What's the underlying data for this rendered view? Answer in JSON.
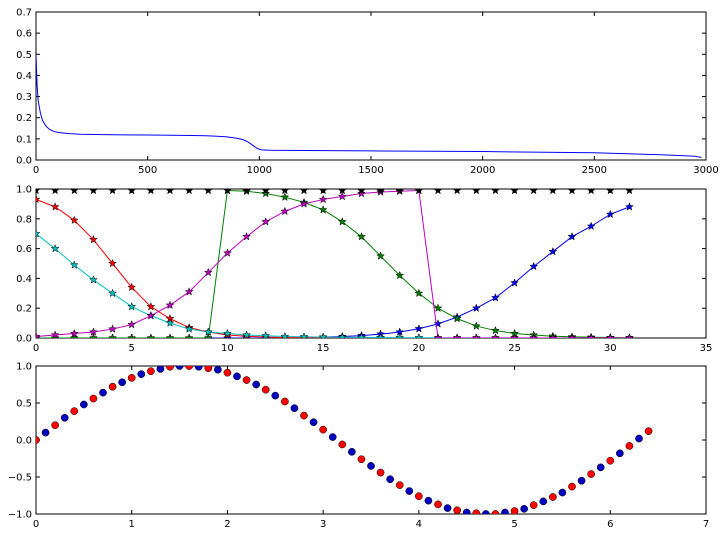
{
  "chart_data": [
    {
      "type": "line",
      "title": "",
      "xlabel": "",
      "ylabel": "",
      "xlim": [
        0,
        3000
      ],
      "ylim": [
        0,
        0.7
      ],
      "xticks": [
        0,
        500,
        1000,
        1500,
        2000,
        2500,
        3000
      ],
      "xtick_labels": [
        "0",
        "500",
        "1000",
        "1500",
        "2000",
        "2500",
        "3000"
      ],
      "yticks": [
        0.0,
        0.1,
        0.2,
        0.3,
        0.4,
        0.5,
        0.6,
        0.7
      ],
      "ytick_labels": [
        "0.0",
        "0.1",
        "0.2",
        "0.3",
        "0.4",
        "0.5",
        "0.6",
        "0.7"
      ],
      "grid": false,
      "series": [
        {
          "color": "#0000ff",
          "points": [
            [
              0,
              0.5
            ],
            [
              5,
              0.35
            ],
            [
              10,
              0.28
            ],
            [
              20,
              0.22
            ],
            [
              30,
              0.185
            ],
            [
              45,
              0.16
            ],
            [
              60,
              0.145
            ],
            [
              80,
              0.135
            ],
            [
              100,
              0.13
            ],
            [
              150,
              0.125
            ],
            [
              200,
              0.122
            ],
            [
              300,
              0.12
            ],
            [
              400,
              0.119
            ],
            [
              500,
              0.118
            ],
            [
              600,
              0.117
            ],
            [
              700,
              0.116
            ],
            [
              760,
              0.115
            ],
            [
              800,
              0.113
            ],
            [
              850,
              0.11
            ],
            [
              900,
              0.103
            ],
            [
              930,
              0.095
            ],
            [
              950,
              0.085
            ],
            [
              970,
              0.07
            ],
            [
              990,
              0.055
            ],
            [
              1010,
              0.048
            ],
            [
              1050,
              0.046
            ],
            [
              1200,
              0.045
            ],
            [
              1500,
              0.043
            ],
            [
              2000,
              0.04
            ],
            [
              2500,
              0.034
            ],
            [
              2800,
              0.025
            ],
            [
              2900,
              0.02
            ],
            [
              2950,
              0.018
            ],
            [
              2980,
              0.012
            ]
          ]
        }
      ]
    },
    {
      "type": "line",
      "title": "",
      "xlabel": "",
      "ylabel": "",
      "xlim": [
        0,
        35
      ],
      "ylim": [
        0,
        1.0
      ],
      "xticks": [
        0,
        5,
        10,
        15,
        20,
        25,
        30,
        35
      ],
      "xtick_labels": [
        "0",
        "5",
        "10",
        "15",
        "20",
        "25",
        "30",
        "35"
      ],
      "yticks": [
        0.0,
        0.2,
        0.4,
        0.6,
        0.8,
        1.0
      ],
      "ytick_labels": [
        "0.0",
        "0.2",
        "0.4",
        "0.6",
        "0.8",
        "1.0"
      ],
      "grid": false,
      "marker": "star",
      "series": [
        {
          "color": "#0000ff",
          "x": [
            0,
            1,
            2,
            3,
            4,
            5,
            6,
            7,
            8,
            9,
            10,
            11,
            12,
            13,
            14,
            15,
            16,
            17,
            18,
            19,
            20,
            21,
            22,
            23,
            24,
            25,
            26,
            27,
            28,
            29,
            30,
            31
          ],
          "y": [
            0.0,
            0.0,
            0.0,
            0.0,
            0.0,
            0.0,
            0.0,
            0.0,
            0.0,
            0.0,
            0.0,
            0.0,
            0.0,
            0.0,
            0.003,
            0.006,
            0.01,
            0.016,
            0.026,
            0.04,
            0.062,
            0.095,
            0.14,
            0.2,
            0.27,
            0.37,
            0.48,
            0.58,
            0.68,
            0.75,
            0.83,
            0.88
          ]
        },
        {
          "color": "#008000",
          "x": [
            0,
            1,
            2,
            3,
            4,
            5,
            6,
            7,
            8,
            9,
            10,
            11,
            12,
            13,
            14,
            15,
            16,
            17,
            18,
            19,
            20,
            21,
            22,
            23,
            24,
            25,
            26,
            27,
            28,
            29,
            30,
            31
          ],
          "y": [
            0.0,
            0.0,
            0.0,
            0.0,
            0.0,
            0.0,
            0.0,
            0.0,
            0.0,
            0.0,
            0.99,
            0.985,
            0.97,
            0.945,
            0.91,
            0.86,
            0.78,
            0.68,
            0.55,
            0.42,
            0.3,
            0.2,
            0.13,
            0.08,
            0.05,
            0.03,
            0.02,
            0.012,
            0.008,
            0.005,
            0.003,
            0.002
          ]
        },
        {
          "color": "#ff0000",
          "x": [
            0,
            1,
            2,
            3,
            4,
            5,
            6,
            7,
            8,
            9,
            10,
            11,
            12,
            13,
            14,
            15,
            16,
            17,
            18,
            19,
            20,
            21,
            22,
            23,
            24,
            25,
            26,
            27,
            28,
            29,
            30,
            31
          ],
          "y": [
            0.93,
            0.88,
            0.79,
            0.66,
            0.5,
            0.34,
            0.21,
            0.13,
            0.07,
            0.04,
            0.02,
            0.012,
            0.006,
            0.003,
            0.002,
            0.001,
            0.0,
            0.0,
            0.0,
            0.0,
            0.0,
            0.0,
            0.0,
            0.0,
            0.0,
            0.0,
            0.0,
            0.0,
            0.0,
            0.0,
            0.0,
            0.0
          ]
        },
        {
          "color": "#00bfbf",
          "x": [
            0,
            1,
            2,
            3,
            4,
            5,
            6,
            7,
            8,
            9,
            10,
            11,
            12,
            13,
            14,
            15,
            16,
            17,
            18,
            19,
            20,
            21,
            22,
            23,
            24,
            25,
            26,
            27,
            28,
            29,
            30,
            31
          ],
          "y": [
            0.7,
            0.6,
            0.49,
            0.39,
            0.3,
            0.21,
            0.15,
            0.1,
            0.06,
            0.04,
            0.03,
            0.02,
            0.015,
            0.01,
            0.008,
            0.006,
            0.005,
            0.004,
            0.003,
            0.002,
            0.002,
            0.001,
            0.001,
            0.001,
            0.001,
            0.001,
            0.0,
            0.0,
            0.0,
            0.0,
            0.0,
            0.0
          ]
        },
        {
          "color": "#bf00bf",
          "x": [
            0,
            1,
            2,
            3,
            4,
            5,
            6,
            7,
            8,
            9,
            10,
            11,
            12,
            13,
            14,
            15,
            16,
            17,
            18,
            19,
            20,
            21,
            22,
            23,
            24,
            25,
            26,
            27,
            28,
            29,
            30,
            31
          ],
          "y": [
            0.01,
            0.02,
            0.03,
            0.04,
            0.06,
            0.09,
            0.15,
            0.22,
            0.31,
            0.44,
            0.57,
            0.68,
            0.78,
            0.85,
            0.9,
            0.93,
            0.95,
            0.97,
            0.98,
            0.985,
            0.99,
            0.0,
            0.0,
            0.0,
            0.0,
            0.0,
            0.0,
            0.0,
            0.0,
            0.0,
            0.0,
            0.0
          ]
        },
        {
          "color": "#000000",
          "x": [
            0,
            1,
            2,
            3,
            4,
            5,
            6,
            7,
            8,
            9,
            10,
            11,
            12,
            13,
            14,
            15,
            16,
            17,
            18,
            19,
            20,
            21,
            22,
            23,
            24,
            25,
            26,
            27,
            28,
            29,
            30,
            31
          ],
          "y": [
            0.99,
            0.99,
            0.99,
            0.99,
            0.99,
            0.99,
            0.99,
            0.99,
            0.99,
            0.99,
            0.99,
            0.99,
            0.99,
            0.99,
            0.99,
            0.99,
            0.99,
            0.99,
            0.99,
            0.99,
            0.99,
            0.99,
            0.99,
            0.99,
            0.99,
            0.99,
            0.99,
            0.99,
            0.99,
            0.99,
            0.99,
            0.99
          ]
        }
      ]
    },
    {
      "type": "scatter",
      "title": "",
      "xlabel": "",
      "ylabel": "",
      "xlim": [
        0,
        7
      ],
      "ylim": [
        -1.0,
        1.0
      ],
      "xticks": [
        0,
        1,
        2,
        3,
        4,
        5,
        6,
        7
      ],
      "xtick_labels": [
        "0",
        "1",
        "2",
        "3",
        "4",
        "5",
        "6",
        "7"
      ],
      "yticks": [
        -1.0,
        -0.5,
        0.0,
        0.5,
        1.0
      ],
      "ytick_labels": [
        "−1.0",
        "−0.5",
        "0.0",
        "0.5",
        "1.0"
      ],
      "grid": false,
      "series": [
        {
          "color": "#0000bf",
          "x": [
            0.1,
            0.3,
            0.5,
            0.7,
            0.9,
            1.1,
            1.3,
            1.5,
            1.7,
            1.9,
            2.1,
            2.3,
            2.5,
            2.7,
            2.9,
            3.1,
            3.3,
            3.5,
            3.7,
            3.9,
            4.1,
            4.3,
            4.5,
            4.7,
            4.9,
            5.1,
            5.3,
            5.5,
            5.7,
            5.9,
            6.1,
            6.3
          ],
          "y": [
            0.1,
            0.3,
            0.48,
            0.64,
            0.78,
            0.89,
            0.96,
            1.0,
            0.99,
            0.95,
            0.86,
            0.75,
            0.6,
            0.43,
            0.24,
            0.04,
            -0.16,
            -0.35,
            -0.53,
            -0.69,
            -0.82,
            -0.92,
            -0.98,
            -1.0,
            -0.98,
            -0.93,
            -0.83,
            -0.71,
            -0.55,
            -0.37,
            -0.18,
            0.02
          ]
        },
        {
          "color": "#ff0000",
          "x": [
            0.0,
            0.2,
            0.4,
            0.6,
            0.8,
            1.0,
            1.2,
            1.4,
            1.6,
            1.8,
            2.0,
            2.2,
            2.4,
            2.6,
            2.8,
            3.0,
            3.2,
            3.4,
            3.6,
            3.8,
            4.0,
            4.2,
            4.4,
            4.6,
            4.8,
            5.0,
            5.2,
            5.4,
            5.6,
            5.8,
            6.0,
            6.2,
            6.4
          ],
          "y": [
            0.0,
            0.2,
            0.39,
            0.56,
            0.72,
            0.84,
            0.93,
            0.99,
            1.0,
            0.97,
            0.91,
            0.81,
            0.68,
            0.52,
            0.33,
            0.14,
            -0.06,
            -0.26,
            -0.44,
            -0.61,
            -0.76,
            -0.87,
            -0.95,
            -0.99,
            -1.0,
            -0.96,
            -0.88,
            -0.77,
            -0.63,
            -0.46,
            -0.28,
            -0.08,
            0.12
          ]
        }
      ]
    }
  ]
}
